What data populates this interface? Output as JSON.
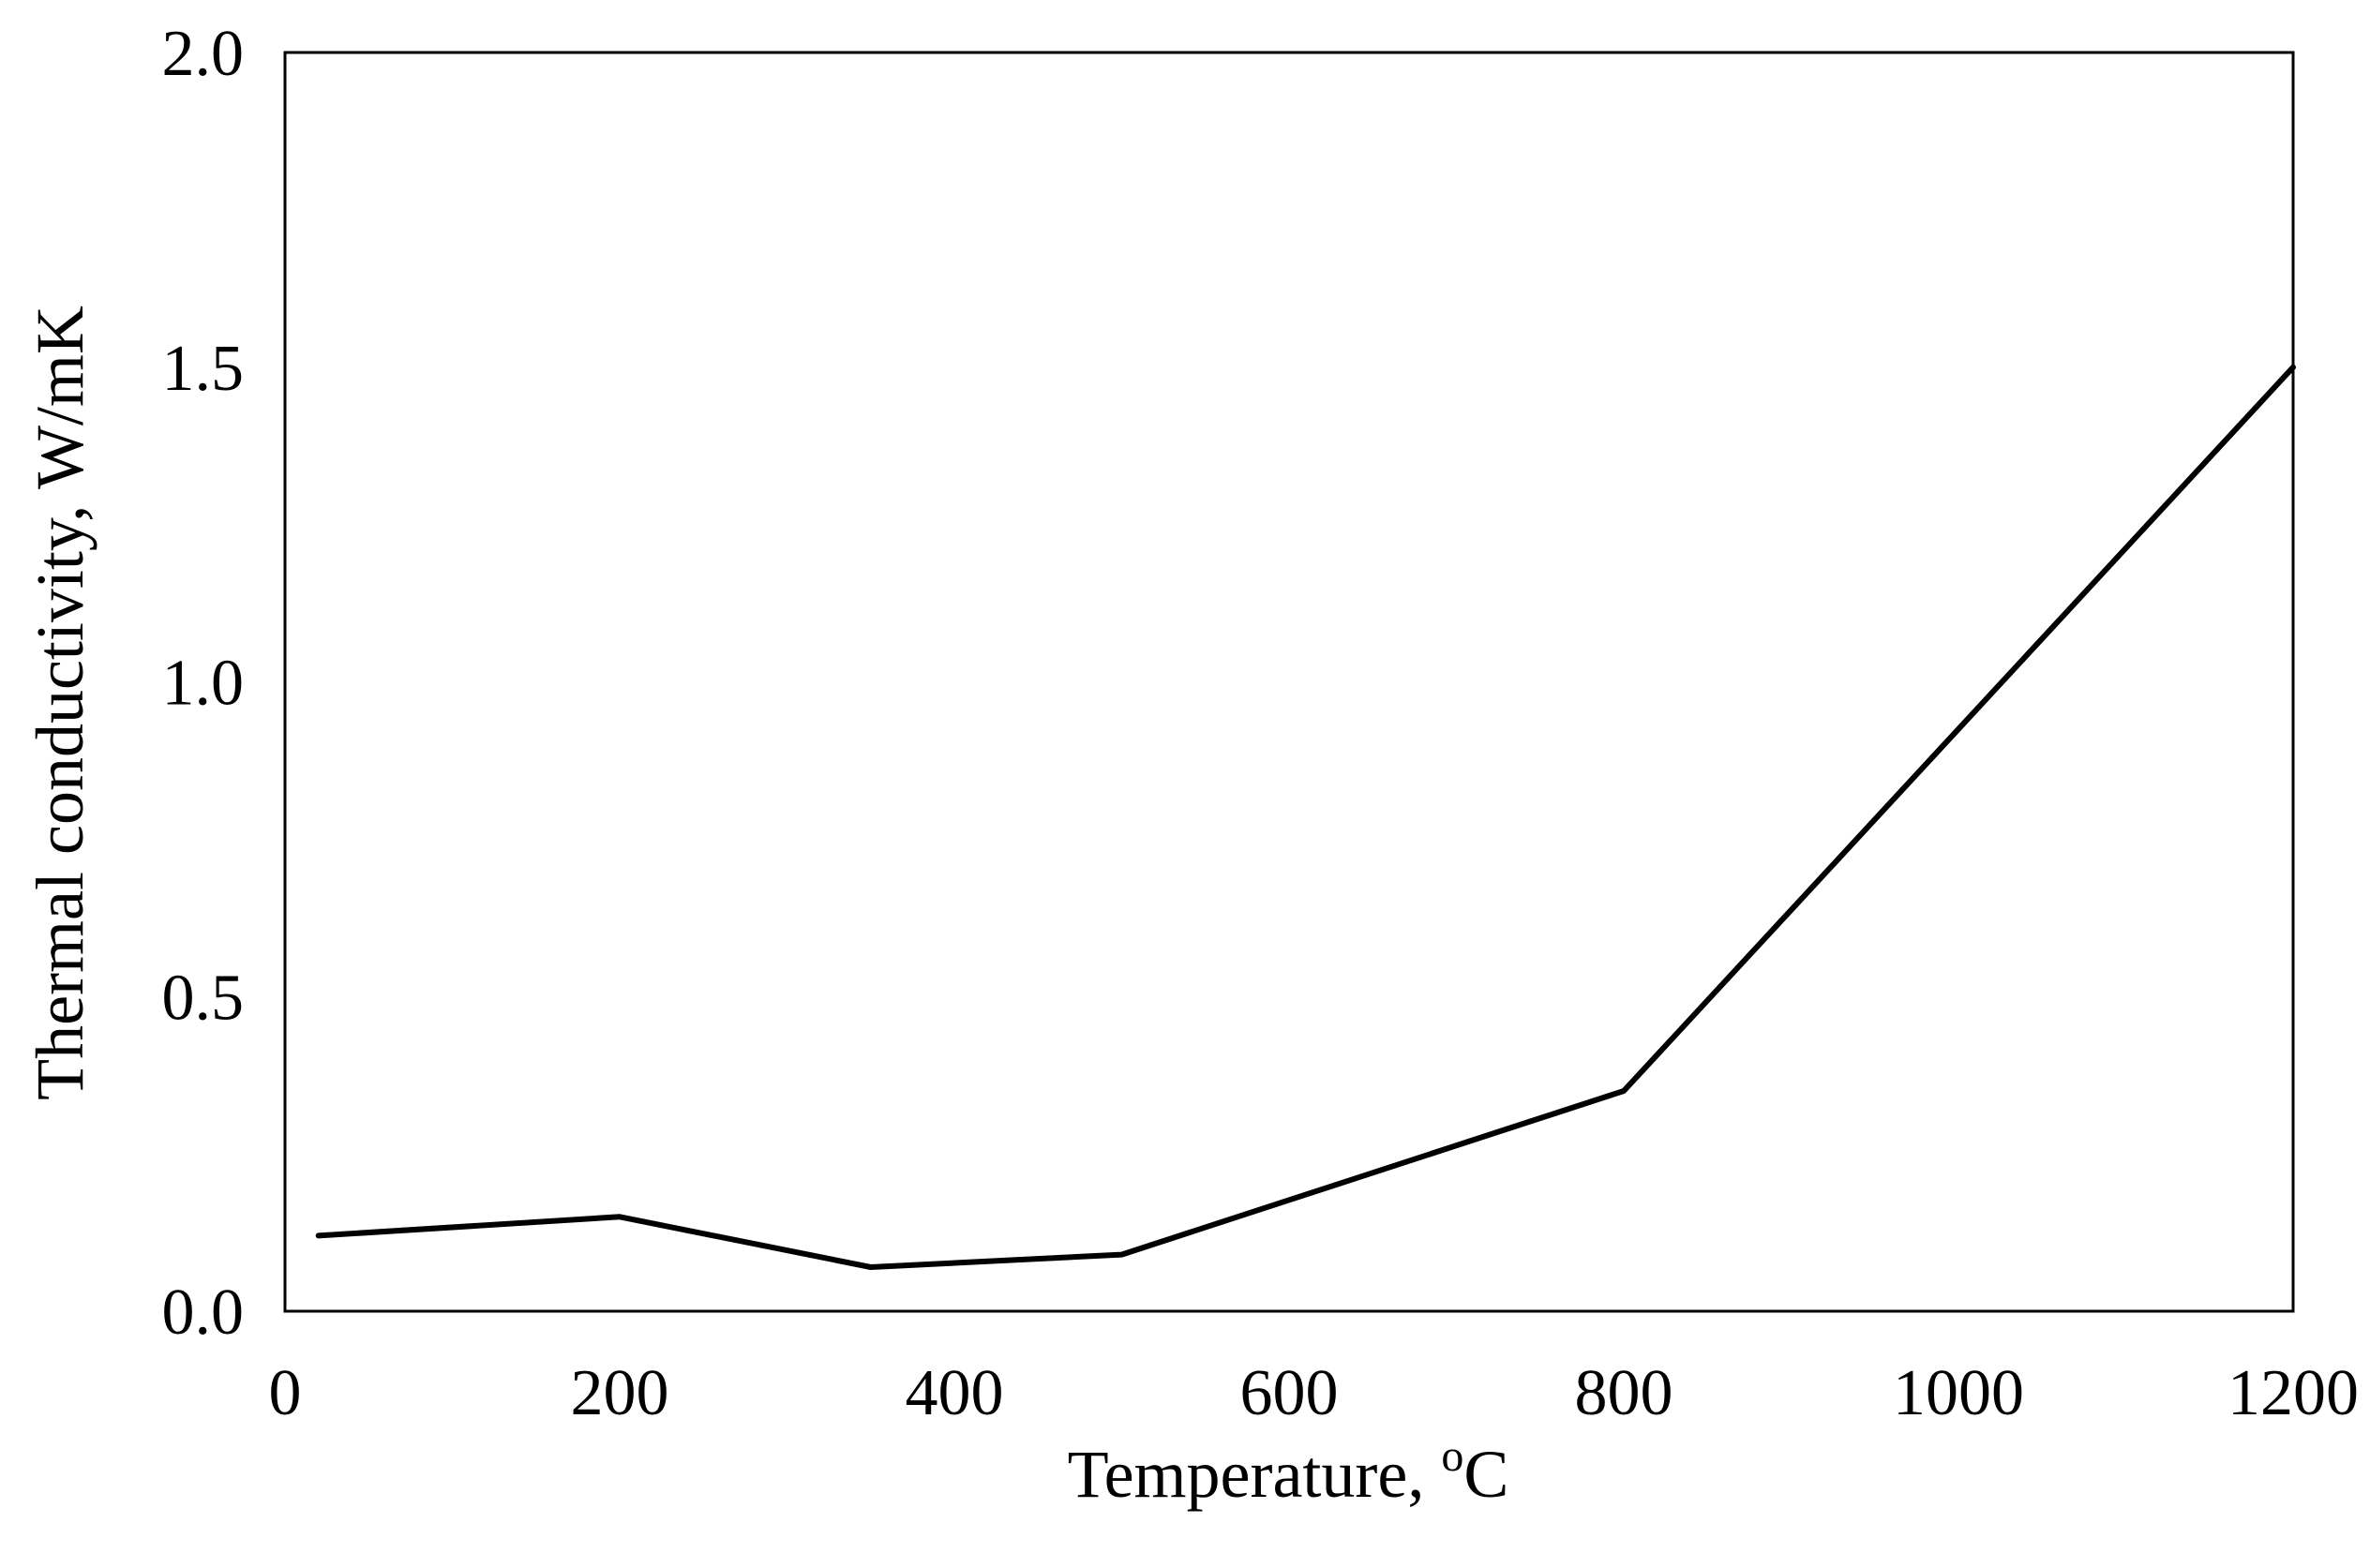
{
  "chart_data": {
    "type": "line",
    "title": "",
    "xlabel": "Temperature, oC",
    "xlabel_parts": {
      "main": "Temperature, ",
      "superscript": "o",
      "unit": "C"
    },
    "ylabel": "Thermal conductivity,  W/mK",
    "xlim": [
      0,
      1200
    ],
    "ylim": [
      0,
      2.0
    ],
    "x_ticks": [
      0,
      200,
      400,
      600,
      800,
      1000,
      1200
    ],
    "x_tick_labels": [
      "0",
      "200",
      "400",
      "600",
      "800",
      "1000",
      "1200"
    ],
    "y_ticks": [
      0,
      0.5,
      1.0,
      1.5,
      2.0
    ],
    "y_tick_labels": [
      "0.0",
      "0.5",
      "1.0",
      "1.5",
      "2.0"
    ],
    "grid": false,
    "legend": "none",
    "series": [
      {
        "color": "#000000",
        "x": [
          20,
          200,
          350,
          500,
          800,
          1200
        ],
        "y": [
          0.12,
          0.15,
          0.07,
          0.09,
          0.35,
          1.5
        ]
      }
    ]
  }
}
